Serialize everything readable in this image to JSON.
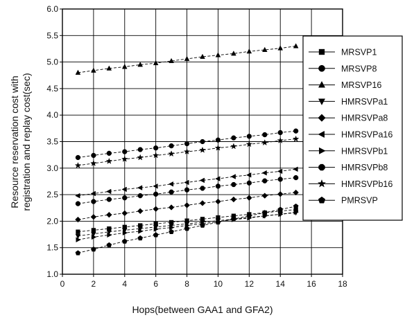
{
  "chart_data": {
    "type": "line",
    "title": "",
    "xlabel": "Hops(between  GAA1  and  GFA2)",
    "ylabel_lines": [
      "Resource reservation cost with",
      "registration and replay cost(sec)"
    ],
    "xlim": [
      0,
      18
    ],
    "ylim": [
      1.0,
      6.0
    ],
    "xticks": [
      "0",
      "2",
      "4",
      "6",
      "8",
      "10",
      "12",
      "14",
      "16",
      "18"
    ],
    "yticks": [
      "1.0",
      "1.5",
      "2.0",
      "2.5",
      "3.0",
      "3.5",
      "4.0",
      "4.5",
      "5.0",
      "5.5",
      "6.0"
    ],
    "grid": true,
    "legend_position": "right",
    "x": [
      1,
      2,
      3,
      4,
      5,
      6,
      7,
      8,
      9,
      10,
      11,
      12,
      13,
      14,
      15
    ],
    "series": [
      {
        "name": "MRSVP1",
        "marker": "square",
        "values": [
          1.8,
          1.83,
          1.86,
          1.89,
          1.92,
          1.95,
          1.98,
          2.01,
          2.04,
          2.07,
          2.1,
          2.13,
          2.16,
          2.19,
          2.22
        ]
      },
      {
        "name": "MRSVP8",
        "marker": "circle",
        "values": [
          3.2,
          3.24,
          3.28,
          3.31,
          3.35,
          3.38,
          3.42,
          3.46,
          3.5,
          3.53,
          3.57,
          3.6,
          3.63,
          3.67,
          3.7
        ]
      },
      {
        "name": "MRSVP16",
        "marker": "triangle-up",
        "values": [
          4.8,
          4.84,
          4.88,
          4.91,
          4.95,
          4.98,
          5.02,
          5.06,
          5.1,
          5.13,
          5.16,
          5.2,
          5.23,
          5.26,
          5.3
        ]
      },
      {
        "name": "HMRSVPa1",
        "marker": "triangle-down",
        "values": [
          1.72,
          1.76,
          1.8,
          1.83,
          1.86,
          1.89,
          1.92,
          1.95,
          1.98,
          2.01,
          2.04,
          2.07,
          2.1,
          2.13,
          2.16
        ]
      },
      {
        "name": "HMRSVPa8",
        "marker": "diamond",
        "values": [
          2.03,
          2.08,
          2.12,
          2.15,
          2.19,
          2.23,
          2.26,
          2.3,
          2.34,
          2.37,
          2.41,
          2.44,
          2.48,
          2.51,
          2.54
        ]
      },
      {
        "name": "HMRSVPa16",
        "marker": "triangle-left",
        "values": [
          2.48,
          2.52,
          2.56,
          2.6,
          2.63,
          2.66,
          2.7,
          2.73,
          2.77,
          2.8,
          2.84,
          2.87,
          2.91,
          2.94,
          2.98
        ]
      },
      {
        "name": "HMRSVPb1",
        "marker": "triangle-right",
        "values": [
          1.65,
          1.7,
          1.74,
          1.78,
          1.81,
          1.85,
          1.88,
          1.92,
          1.95,
          1.99,
          2.03,
          2.06,
          2.1,
          2.13,
          2.17
        ]
      },
      {
        "name": "HMRSVPb8",
        "marker": "octagon",
        "values": [
          2.33,
          2.37,
          2.41,
          2.44,
          2.48,
          2.51,
          2.55,
          2.59,
          2.62,
          2.66,
          2.69,
          2.72,
          2.76,
          2.79,
          2.82
        ]
      },
      {
        "name": "HMRSVPb16",
        "marker": "star",
        "values": [
          3.05,
          3.09,
          3.13,
          3.17,
          3.2,
          3.24,
          3.27,
          3.31,
          3.34,
          3.38,
          3.41,
          3.45,
          3.48,
          3.52,
          3.55
        ]
      },
      {
        "name": "PMRSVP",
        "marker": "pentagon",
        "values": [
          1.4,
          1.47,
          1.55,
          1.62,
          1.68,
          1.74,
          1.8,
          1.86,
          1.92,
          1.98,
          2.04,
          2.1,
          2.16,
          2.22,
          2.28
        ]
      }
    ]
  }
}
